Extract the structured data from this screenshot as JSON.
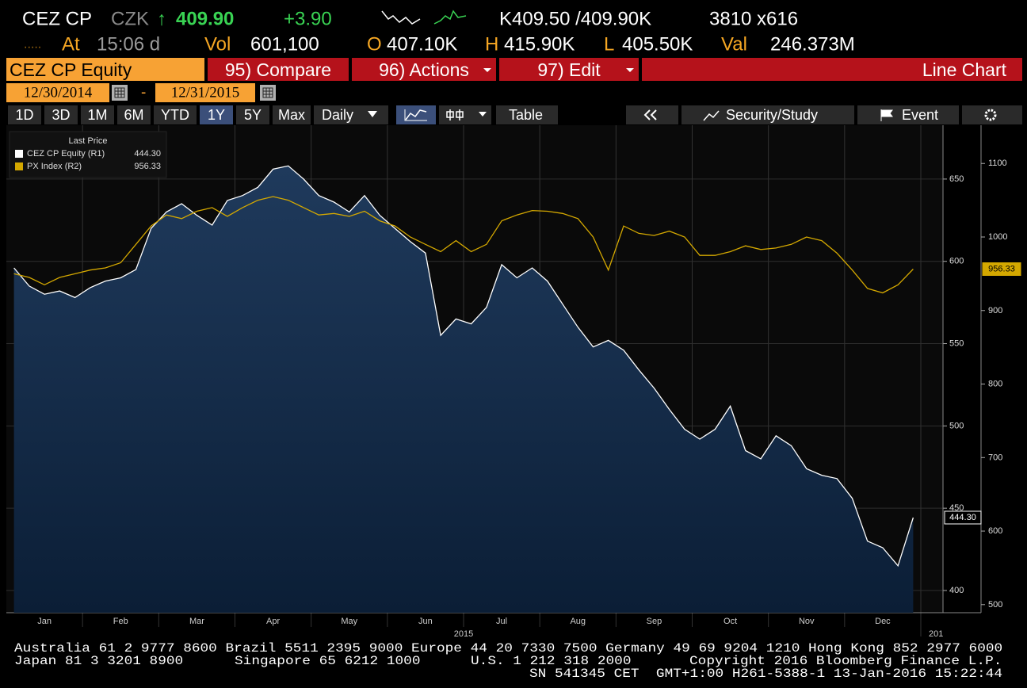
{
  "header": {
    "ticker": "CEZ CP",
    "currency": "CZK",
    "arrow": "↑",
    "price": "409.90",
    "change": "+3.90",
    "bid_ask": "K409.50 /409.90K",
    "size": "3810 x616",
    "time_label": "At",
    "time": "15:06 d",
    "vol_label": "Vol",
    "vol": "601,100",
    "open_label": "O",
    "open": "407.10K",
    "high_label": "H",
    "high": "415.90K",
    "low_label": "L",
    "low": "405.50K",
    "val_label": "Val",
    "val": "246.373M"
  },
  "toolbar": {
    "security": "CEZ CP Equity",
    "compare": "95) Compare",
    "actions": "96) Actions",
    "edit": "97) Edit",
    "chart_type": "Line Chart",
    "start_date": "12/30/2014",
    "date_sep": "-",
    "end_date": "12/31/2015",
    "periods": [
      "1D",
      "3D",
      "1M",
      "6M",
      "YTD",
      "1Y",
      "5Y",
      "Max"
    ],
    "frequency": "Daily",
    "table": "Table",
    "security_study": "Security/Study",
    "event": "Event"
  },
  "chart_data": {
    "type": "line",
    "legend_title": "Last Price",
    "categories": [
      null,
      null,
      "Jan",
      null,
      null,
      null,
      null,
      "Feb",
      null,
      null,
      null,
      null,
      "Mar",
      null,
      null,
      null,
      null,
      "Apr",
      null,
      null,
      null,
      null,
      "May",
      null,
      null,
      null,
      null,
      "Jun",
      null,
      null,
      null,
      null,
      "Jul",
      null,
      null,
      null,
      null,
      "Aug",
      null,
      null,
      null,
      null,
      "Sep",
      null,
      null,
      null,
      null,
      "Oct",
      null,
      null,
      null,
      null,
      "Nov",
      null,
      null,
      null,
      null,
      "Dec",
      null,
      null
    ],
    "x_year_labels": [
      "2015",
      "201"
    ],
    "series": [
      {
        "name": "CEZ CP Equity (R1)",
        "color": "#ffffff",
        "axis": "y",
        "values": [
          596,
          585,
          580,
          582,
          578,
          584,
          588,
          590,
          595,
          620,
          630,
          635,
          628,
          622,
          637,
          640,
          645,
          656,
          658,
          650,
          640,
          636,
          630,
          640,
          628,
          620,
          612,
          605,
          555,
          565,
          562,
          572,
          598,
          590,
          596,
          588,
          574,
          560,
          548,
          552,
          546,
          534,
          523,
          510,
          498,
          492,
          498,
          512,
          485,
          480,
          494,
          488,
          474,
          470,
          468,
          456,
          430,
          426,
          415,
          444.3
        ],
        "value_labels": [
          null,
          null,
          null,
          null,
          null,
          null,
          null,
          null,
          null,
          null,
          null,
          null,
          null,
          null,
          null,
          null,
          null,
          null,
          null,
          null,
          null,
          null,
          null,
          null,
          null,
          null,
          null,
          null,
          null,
          null,
          null,
          null,
          null,
          null,
          null,
          null,
          null,
          null,
          null,
          null,
          null,
          null,
          null,
          null,
          null,
          null,
          null,
          null,
          null,
          null,
          null,
          null,
          null,
          null,
          null,
          null,
          null,
          null,
          null,
          "444.30"
        ]
      },
      {
        "name": "PX Index (R2)",
        "color": "#d4a800",
        "axis": "y2",
        "values": [
          950,
          945,
          935,
          945,
          950,
          955,
          958,
          965,
          990,
          1015,
          1030,
          1025,
          1035,
          1040,
          1028,
          1040,
          1050,
          1055,
          1050,
          1040,
          1030,
          1032,
          1028,
          1035,
          1022,
          1015,
          1000,
          990,
          980,
          995,
          980,
          990,
          1022,
          1030,
          1036,
          1035,
          1032,
          1025,
          1000,
          955,
          1015,
          1005,
          1002,
          1008,
          1000,
          975,
          975,
          980,
          988,
          983,
          985,
          990,
          1000,
          995,
          978,
          955,
          930,
          924,
          935,
          956.33
        ],
        "value_labels": [
          null,
          null,
          null,
          null,
          null,
          null,
          null,
          null,
          null,
          null,
          null,
          null,
          null,
          null,
          null,
          null,
          null,
          null,
          null,
          null,
          null,
          null,
          null,
          null,
          null,
          null,
          null,
          null,
          null,
          null,
          null,
          null,
          null,
          null,
          null,
          null,
          null,
          null,
          null,
          null,
          null,
          null,
          null,
          null,
          null,
          null,
          null,
          null,
          null,
          null,
          null,
          null,
          null,
          null,
          null,
          null,
          null,
          null,
          null,
          "956.33"
        ]
      }
    ],
    "ylim": [
      386.5,
      682.7
    ],
    "yticks": [
      400,
      450,
      500,
      550,
      600,
      650
    ],
    "y2lim": [
      489,
      1152
    ],
    "y2ticks": [
      500,
      600,
      700,
      800,
      900,
      1000,
      1100
    ],
    "grid": true
  },
  "footer": {
    "line1": "Australia 61 2 9777 8600 Brazil 5511 2395 9000 Europe 44 20 7330 7500 Germany 49 69 9204 1210 Hong Kong 852 2977 6000",
    "japan": "Japan 81 3 3201 8900",
    "singapore": "Singapore 65 6212 1000",
    "us": "U.S. 1 212 318 2000",
    "copyright": "Copyright 2016 Bloomberg Finance L.P.",
    "session": "SN 541345 CET  GMT+1:00 H261-5388-1 13-Jan-2016 15:22:44"
  }
}
